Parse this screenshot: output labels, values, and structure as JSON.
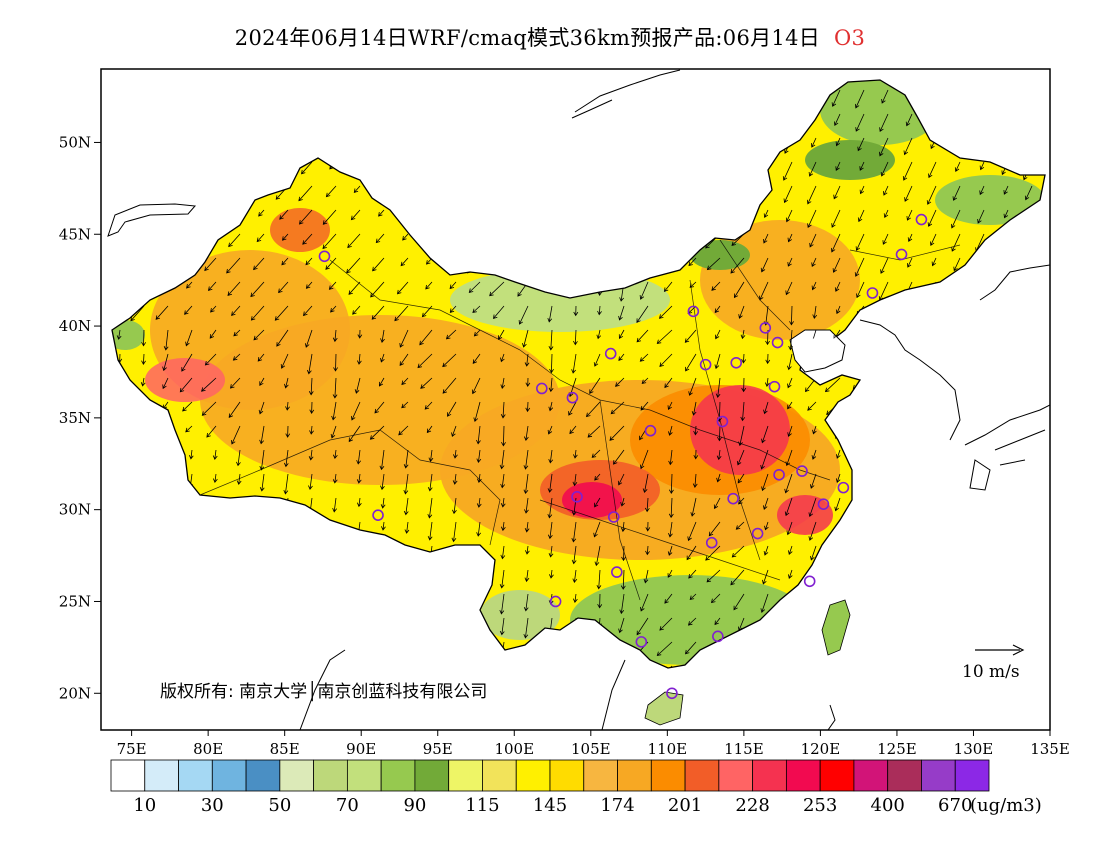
{
  "title": {
    "main": "2024年06月14日WRF/cmaq模式36km预报产品:06月14日",
    "variable": "O3",
    "variable_color": "#e03030"
  },
  "map": {
    "lon_range": [
      73,
      135
    ],
    "lat_range": [
      18,
      54
    ],
    "x_ticks": [
      "75E",
      "80E",
      "85E",
      "90E",
      "95E",
      "100E",
      "105E",
      "110E",
      "115E",
      "120E",
      "125E",
      "130E",
      "135E"
    ],
    "x_tick_values": [
      75,
      80,
      85,
      90,
      95,
      100,
      105,
      110,
      115,
      120,
      125,
      130,
      135
    ],
    "y_ticks": [
      "50N",
      "45N",
      "40N",
      "35N",
      "30N",
      "25N",
      "20N"
    ],
    "y_tick_values": [
      50,
      45,
      40,
      35,
      30,
      25,
      20
    ],
    "wind_reference": "10 m/s",
    "copyright": "版权所有: 南京大学│南京创蓝科技有限公司"
  },
  "colorbar": {
    "colors": [
      "#ffffff",
      "#d4ecf9",
      "#a5d8f3",
      "#6fb4e0",
      "#4a8fc4",
      "#dceab8",
      "#bdd87a",
      "#c2e07c",
      "#96c94f",
      "#72aa38",
      "#eef566",
      "#f2e35a",
      "#fff000",
      "#ffdc00",
      "#f7b640",
      "#f7a823",
      "#fb8c00",
      "#f25d28",
      "#ff6464",
      "#f53250",
      "#f20a50",
      "#ff0000",
      "#d21478",
      "#aa2d5a",
      "#963cc8",
      "#8c28e6"
    ],
    "labels": [
      "10",
      "30",
      "50",
      "70",
      "90",
      "115",
      "145",
      "174",
      "201",
      "228",
      "253",
      "400",
      "670"
    ],
    "unit": "(ug/m3)"
  },
  "stations": [
    {
      "lon": 87.6,
      "lat": 43.8
    },
    {
      "lon": 91.1,
      "lat": 29.7
    },
    {
      "lon": 101.8,
      "lat": 36.6
    },
    {
      "lon": 103.8,
      "lat": 36.1
    },
    {
      "lon": 106.3,
      "lat": 38.5
    },
    {
      "lon": 111.7,
      "lat": 40.8
    },
    {
      "lon": 112.5,
      "lat": 37.9
    },
    {
      "lon": 114.5,
      "lat": 38.0
    },
    {
      "lon": 116.4,
      "lat": 39.9
    },
    {
      "lon": 117.2,
      "lat": 39.1
    },
    {
      "lon": 117.0,
      "lat": 36.7
    },
    {
      "lon": 113.6,
      "lat": 34.8
    },
    {
      "lon": 108.9,
      "lat": 34.3
    },
    {
      "lon": 104.1,
      "lat": 30.7
    },
    {
      "lon": 106.5,
      "lat": 29.6
    },
    {
      "lon": 106.7,
      "lat": 26.6
    },
    {
      "lon": 102.7,
      "lat": 25.0
    },
    {
      "lon": 108.3,
      "lat": 22.8
    },
    {
      "lon": 113.3,
      "lat": 23.1
    },
    {
      "lon": 110.3,
      "lat": 20.0
    },
    {
      "lon": 112.9,
      "lat": 28.2
    },
    {
      "lon": 114.3,
      "lat": 30.6
    },
    {
      "lon": 115.9,
      "lat": 28.7
    },
    {
      "lon": 117.3,
      "lat": 31.9
    },
    {
      "lon": 118.8,
      "lat": 32.1
    },
    {
      "lon": 120.2,
      "lat": 30.3
    },
    {
      "lon": 121.5,
      "lat": 31.2
    },
    {
      "lon": 119.3,
      "lat": 26.1
    },
    {
      "lon": 123.4,
      "lat": 41.8
    },
    {
      "lon": 125.3,
      "lat": 43.9
    },
    {
      "lon": 126.6,
      "lat": 45.8
    }
  ]
}
